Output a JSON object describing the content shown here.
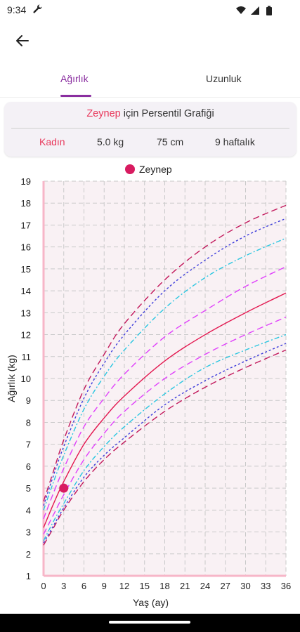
{
  "status_bar": {
    "time": "9:34"
  },
  "tabs": [
    {
      "label": "Ağırlık",
      "active": true
    },
    {
      "label": "Uzunluk",
      "active": false
    }
  ],
  "card": {
    "name": "Zeynep",
    "title_suffix": " için Persentil Grafiği",
    "gender": "Kadın",
    "weight": "5.0 kg",
    "height": "75 cm",
    "age": "9 haftalık"
  },
  "colors": {
    "accent": "#8a2ea0",
    "name": "#e8385b",
    "point": "#d81b60"
  },
  "chart_data": {
    "type": "line",
    "xlabel": "Yaş (ay)",
    "ylabel": "Ağırlık (kg)",
    "xlim": [
      0,
      36
    ],
    "ylim": [
      1,
      19
    ],
    "xticks": [
      0,
      3,
      6,
      9,
      12,
      15,
      18,
      21,
      24,
      27,
      30,
      33,
      36
    ],
    "yticks": [
      1,
      2,
      3,
      4,
      5,
      6,
      7,
      8,
      9,
      10,
      11,
      12,
      13,
      14,
      15,
      16,
      17,
      18,
      19
    ],
    "grid": true,
    "legend": "top-center",
    "x": [
      0,
      1.5,
      3,
      6,
      9,
      12,
      18,
      24,
      30,
      36
    ],
    "series": [
      {
        "color": "#c2185b",
        "dash": "dashed",
        "values": [
          2.4,
          3.2,
          4.0,
          5.3,
          6.3,
          7.1,
          8.5,
          9.6,
          10.5,
          11.3
        ]
      },
      {
        "color": "#3d3ddb",
        "dash": "dotted",
        "values": [
          2.5,
          3.3,
          4.1,
          5.5,
          6.5,
          7.3,
          8.8,
          9.9,
          10.8,
          11.6
        ]
      },
      {
        "color": "#29c6e0",
        "dash": "dashdot",
        "values": [
          2.6,
          3.5,
          4.3,
          5.8,
          6.9,
          7.8,
          9.3,
          10.5,
          11.3,
          12.0
        ]
      },
      {
        "color": "#e040fb",
        "dash": "dashed",
        "values": [
          2.9,
          3.8,
          4.7,
          6.3,
          7.5,
          8.5,
          10.0,
          11.1,
          12.0,
          12.8
        ]
      },
      {
        "color": "#e3174f",
        "dash": "solid",
        "values": [
          3.2,
          4.3,
          5.3,
          7.0,
          8.2,
          9.2,
          10.8,
          12.0,
          13.0,
          13.9
        ]
      },
      {
        "color": "#e040fb",
        "dash": "dashed",
        "values": [
          3.6,
          4.8,
          5.9,
          7.8,
          9.1,
          10.2,
          11.9,
          13.1,
          14.2,
          15.1
        ]
      },
      {
        "color": "#29c6e0",
        "dash": "dashdot",
        "values": [
          4.0,
          5.3,
          6.5,
          8.6,
          10.1,
          11.3,
          13.2,
          14.6,
          15.6,
          16.4
        ]
      },
      {
        "color": "#3d3ddb",
        "dash": "dotted",
        "values": [
          4.2,
          5.6,
          6.9,
          9.1,
          10.7,
          12.0,
          14.0,
          15.4,
          16.5,
          17.3
        ]
      },
      {
        "color": "#c2185b",
        "dash": "dashed",
        "values": [
          4.4,
          5.8,
          7.2,
          9.5,
          11.1,
          12.5,
          14.5,
          16.0,
          17.1,
          17.9
        ]
      }
    ],
    "points": [
      {
        "name": "Zeynep",
        "x": 3,
        "y": 5.0,
        "color": "#d81b60"
      }
    ]
  }
}
